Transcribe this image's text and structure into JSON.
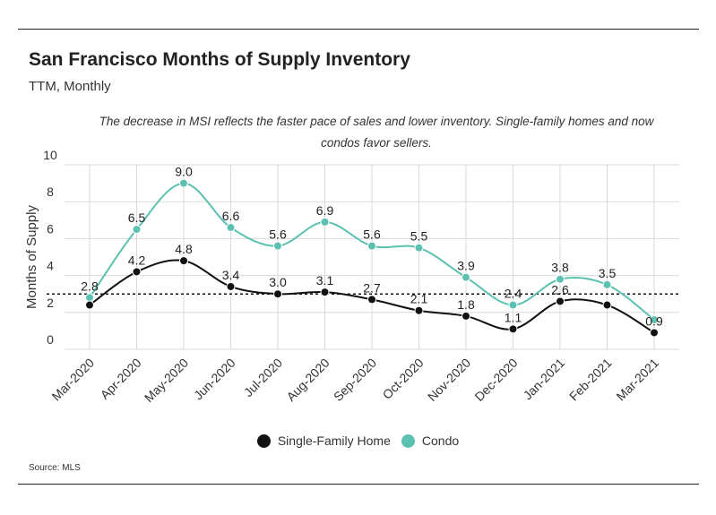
{
  "header": {
    "title": "San Francisco Months of Supply Inventory",
    "subtitle": "TTM, Monthly",
    "note": "The decrease in MSI reflects the faster pace of sales and lower inventory. Single-family homes and now condos favor sellers."
  },
  "footer": {
    "source": "Source:  MLS"
  },
  "colors": {
    "sfh": "#111111",
    "condo": "#5cc1b1",
    "grid": "#d9d9d9",
    "reference": "#111111"
  },
  "chart_data": {
    "type": "line",
    "title": "San Francisco Months of Supply Inventory",
    "subtitle": "TTM, Monthly",
    "ylabel": "Months of Supply",
    "xlabel": "",
    "ylim": [
      0,
      10
    ],
    "yticks": [
      "0",
      "2",
      "4",
      "6",
      "8",
      "10"
    ],
    "grid": true,
    "legend_position": "bottom",
    "reference_line": 3,
    "categories": [
      "Mar-2020",
      "Apr-2020",
      "May-2020",
      "Jun-2020",
      "Jul-2020",
      "Aug-2020",
      "Sep-2020",
      "Oct-2020",
      "Nov-2020",
      "Dec-2020",
      "Jan-2021",
      "Feb-2021",
      "Mar-2021"
    ],
    "series": [
      {
        "name": "Single-Family Home",
        "color": "#111111",
        "values": [
          2.4,
          4.2,
          4.8,
          3.4,
          3.0,
          3.1,
          2.7,
          2.1,
          1.8,
          1.1,
          2.6,
          2.4,
          0.9
        ],
        "labels": [
          "",
          "4.2",
          "4.8",
          "3.4",
          "3.0",
          "3.1",
          "2.7",
          "2.1",
          "1.8",
          "1.1",
          "2.6",
          "",
          "0.9"
        ]
      },
      {
        "name": "Condo",
        "color": "#5cc1b1",
        "values": [
          2.8,
          6.5,
          9.0,
          6.6,
          5.6,
          6.9,
          5.6,
          5.5,
          3.9,
          2.4,
          3.8,
          3.5,
          1.6
        ],
        "labels": [
          "2.8",
          "6.5",
          "9.0",
          "6.6",
          "5.6",
          "6.9",
          "5.6",
          "5.5",
          "3.9",
          "2.4",
          "3.8",
          "3.5",
          ""
        ]
      }
    ]
  }
}
